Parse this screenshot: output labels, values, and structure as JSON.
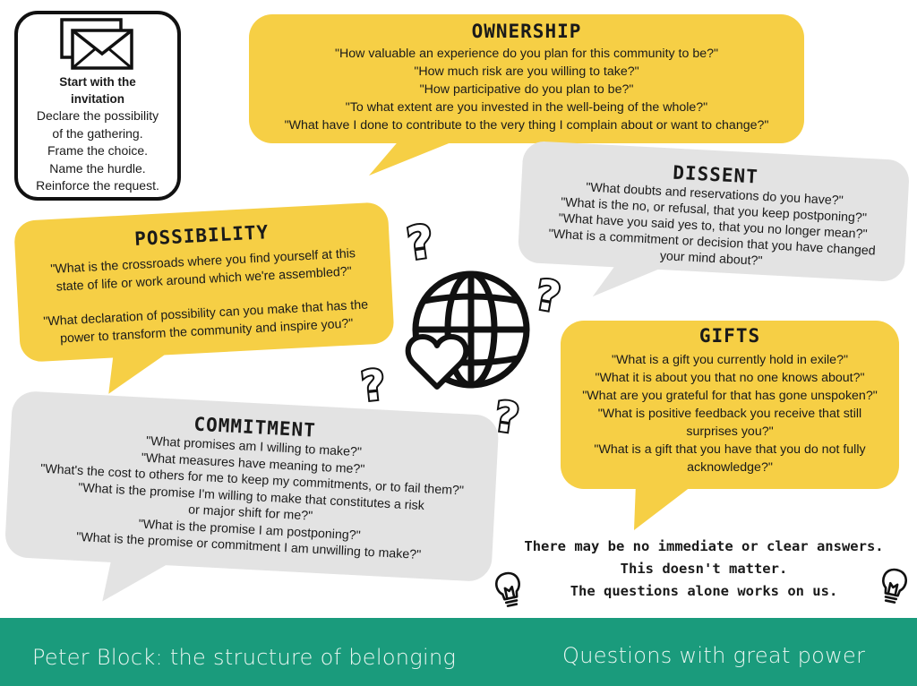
{
  "colors": {
    "yellow": "#f6cf45",
    "gray": "#e3e3e3",
    "footer": "#1a9b7c",
    "ink": "#1a1a1a"
  },
  "invitation": {
    "icon": "envelope-icon",
    "title_lines": [
      "Start with the",
      "invitation"
    ],
    "lines": [
      "Declare the possibility",
      "of the gathering.",
      "Frame the choice.",
      "Name the hurdle.",
      "Reinforce the request."
    ]
  },
  "ownership": {
    "heading": "OWNERSHIP",
    "lines": [
      "\"How valuable an experience do you plan for this community to be?\"",
      "\"How much risk are you willing to take?\"",
      "\"How participative do you plan to be?\"",
      "\"To what extent are you invested in the well-being of the whole?\"",
      "\"What have I done to contribute to the very thing I complain about or want to change?\""
    ]
  },
  "dissent": {
    "heading": "DISSENT",
    "lines": [
      "\"What doubts and reservations do you have?\"",
      "\"What is the no, or refusal, that you keep postponing?\"",
      "\"What have you said yes to, that you no longer mean?\"",
      "\"What is a commitment or decision that you have changed",
      "your mind about?\""
    ]
  },
  "possibility": {
    "heading": "POSSIBILITY",
    "lines": [
      "\"What is the crossroads where you find yourself at this",
      "state of life or work around which we're assembled?\"",
      "\"What declaration of possibility can you make that has the",
      "power to transform the community and inspire you?\""
    ]
  },
  "gifts": {
    "heading": "GIFTS",
    "lines": [
      "\"What is a gift you currently hold in exile?\"",
      "\"What it is about you that no one knows about?\"",
      "\"What are you grateful for that has gone unspoken?\"",
      "\"What is positive feedback you receive that still",
      "surprises you?\"",
      "\"What is a gift that you have that you do not fully",
      "acknowledge?\""
    ]
  },
  "commitment": {
    "heading": "COMMITMENT",
    "lines": [
      "\"What promises am I willing to make?\"",
      "\"What measures have meaning to me?\"",
      "\"What's the cost to others for me to keep my commitments, or to fail them?\"",
      "\"What is the promise I'm willing to make that constitutes a risk",
      "or major shift for me?\"",
      "\"What is the promise I am postponing?\"",
      "\"What is the promise or commitment I am unwilling to make?\""
    ]
  },
  "closing": {
    "lines": [
      "There may be no immediate or clear answers.",
      "This doesn't matter.",
      "The questions alone works on us."
    ]
  },
  "center_icons": [
    "globe-icon",
    "heart-icon",
    "question-mark-icon"
  ],
  "footer": {
    "left": "Peter Block: the structure of belonging",
    "right": "Questions with great power"
  }
}
